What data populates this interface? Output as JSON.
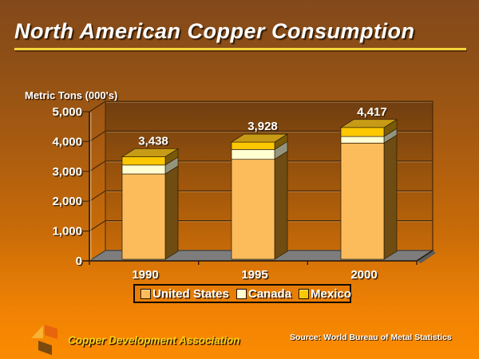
{
  "slide": {
    "title": "North American Copper Consumption",
    "footer_org": "Copper Development Association",
    "source": "Source: World Bureau of Metal Statistics"
  },
  "colors": {
    "background_top": "#84491b",
    "background_bottom": "#fb8b00",
    "title_text": "#ffffff",
    "title_underline": "#f2d53d",
    "wall_top": "#6f3e10",
    "wall_bottom": "#c66a08",
    "floor": "#7d7d7d",
    "floor_edge": "#4a4a4a",
    "grid_line": "#46280a",
    "grid_highlight": "rgba(255,232,185,0.28)",
    "axis_line": "#2f1a06",
    "axis_highlight": "rgba(255,240,200,0.55)",
    "label_text": "#ffffff",
    "label_shadow": "#3a2206",
    "footer_org_text": "#f9d019",
    "logo_yellow": "#f9b233",
    "logo_orange": "#e8650d",
    "logo_brown": "#7c4a0e"
  },
  "chart_data": {
    "type": "bar",
    "stacked": true,
    "projection": "3d",
    "title": "North American Copper Consumption",
    "ylabel": "Metric Tons (000's)",
    "categories": [
      "1990",
      "1995",
      "2000"
    ],
    "series": [
      {
        "name": "United States",
        "color": "#fdbc5c",
        "side_color": "#6e4c12",
        "values": [
          2860,
          3350,
          3895
        ]
      },
      {
        "name": "Canada",
        "color": "#ffffd2",
        "side_color": "#94947c",
        "values": [
          300,
          330,
          220
        ]
      },
      {
        "name": "Mexico",
        "color": "#fdc800",
        "side_color": "#7a5a06",
        "top_color": "#c79b16",
        "values": [
          278,
          248,
          302
        ]
      }
    ],
    "totals": [
      3438,
      3928,
      4417
    ],
    "total_labels": [
      "3,438",
      "3,928",
      "4,417"
    ],
    "ylim": [
      0,
      5000
    ],
    "y_ticks": [
      0,
      1000,
      2000,
      3000,
      4000,
      5000
    ],
    "y_tick_labels": [
      "0",
      "1,000",
      "2,000",
      "3,000",
      "4,000",
      "5,000"
    ],
    "grid": true,
    "legend_position": "bottom",
    "source": "Source: World Bureau of Metal Statistics"
  }
}
